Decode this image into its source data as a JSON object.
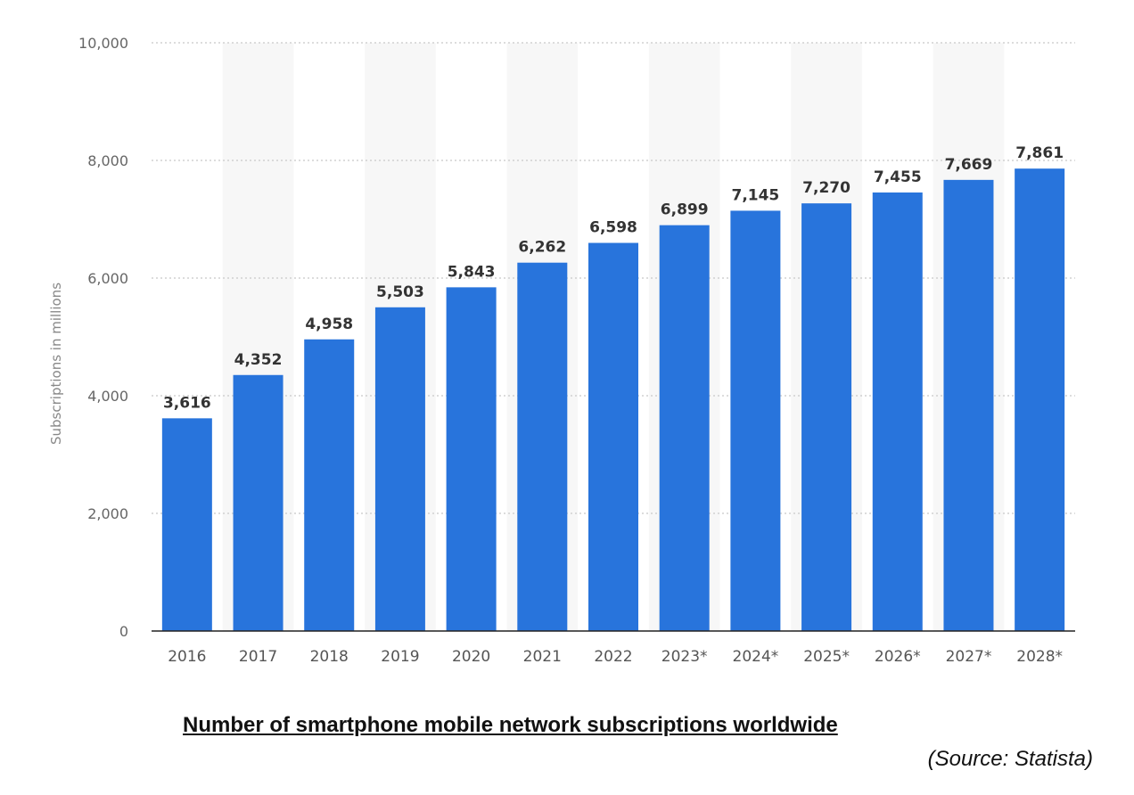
{
  "chart_data": {
    "type": "bar",
    "categories": [
      "2016",
      "2017",
      "2018",
      "2019",
      "2020",
      "2021",
      "2022",
      "2023*",
      "2024*",
      "2025*",
      "2026*",
      "2027*",
      "2028*"
    ],
    "values": [
      3616,
      4352,
      4958,
      5503,
      5843,
      6262,
      6598,
      6899,
      7145,
      7270,
      7455,
      7669,
      7861
    ],
    "value_labels": [
      "3,616",
      "4,352",
      "4,958",
      "5,503",
      "5,843",
      "6,262",
      "6,598",
      "6,899",
      "7,145",
      "7,270",
      "7,455",
      "7,669",
      "7,861"
    ],
    "ylabel": "Subscriptions in millions",
    "ylim": [
      0,
      10000
    ],
    "yticks": [
      0,
      2000,
      4000,
      6000,
      8000,
      10000
    ],
    "ytick_labels": [
      "0",
      "2,000",
      "4,000",
      "6,000",
      "8,000",
      "10,000"
    ],
    "grid": true,
    "bar_color": "#2874dc",
    "alt_band_color": "#f7f7f7"
  },
  "caption": "Number of smartphone mobile network subscriptions worldwide",
  "source": "(Source: Statista)"
}
